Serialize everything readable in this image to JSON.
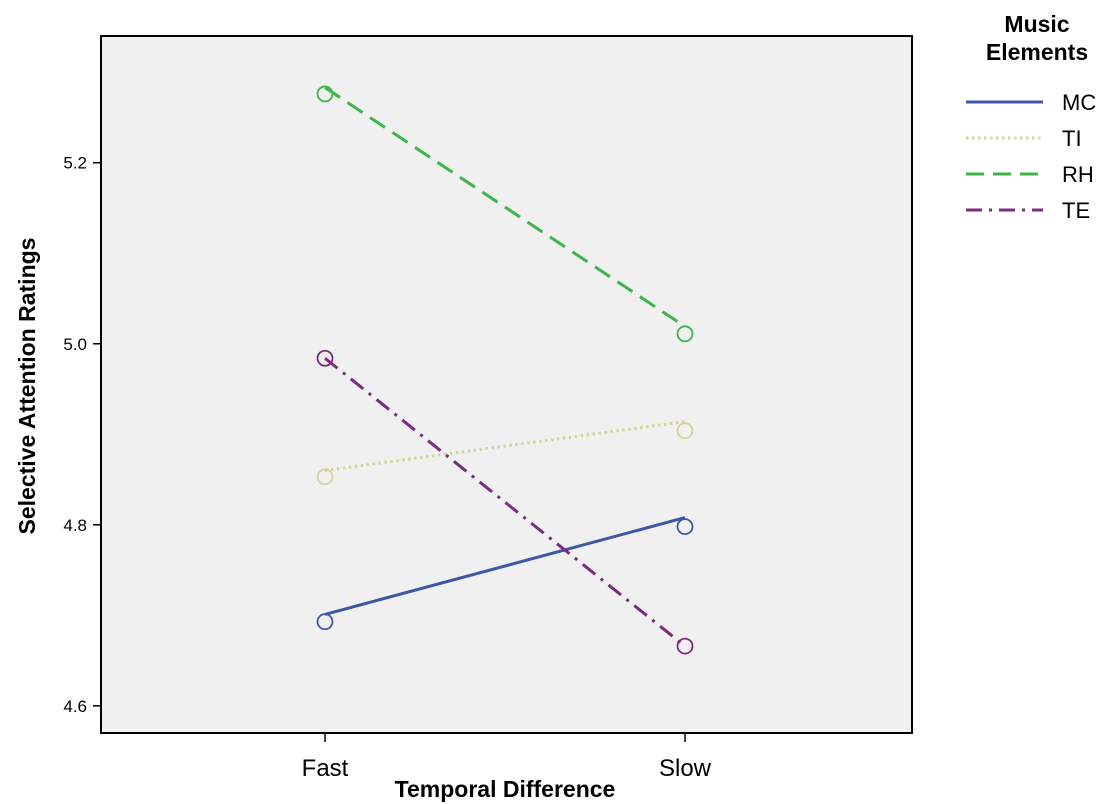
{
  "chart_data": {
    "type": "line",
    "categories": [
      "Fast",
      "Slow"
    ],
    "xlabel": "Temporal Difference",
    "ylabel": "Selective Attention Ratings",
    "ylim": [
      4.57,
      5.34
    ],
    "yticks": [
      4.6,
      4.8,
      5.0,
      5.2
    ],
    "ytick_labels": [
      "4.6",
      "4.8",
      "5.0",
      "5.2"
    ],
    "grid": false,
    "plot_background": "#f0f0f0",
    "legend": {
      "title": "Music Elements",
      "placement": "right"
    },
    "series": [
      {
        "name": "MC",
        "color": "#3d56a6",
        "style": "solid",
        "values": [
          4.693,
          4.798
        ],
        "fit": [
          4.701,
          4.808
        ]
      },
      {
        "name": "TI",
        "color": "#d4d394",
        "style": "dotted",
        "values": [
          4.853,
          4.904
        ],
        "fit": [
          4.86,
          4.914
        ]
      },
      {
        "name": "RH",
        "color": "#3cb54a",
        "style": "dashed",
        "values": [
          5.276,
          5.011
        ],
        "fit": [
          5.283,
          5.019
        ]
      },
      {
        "name": "TE",
        "color": "#7b2c7e",
        "style": "dashdot",
        "values": [
          4.984,
          4.666
        ],
        "fit": [
          4.984,
          4.666
        ]
      }
    ]
  }
}
